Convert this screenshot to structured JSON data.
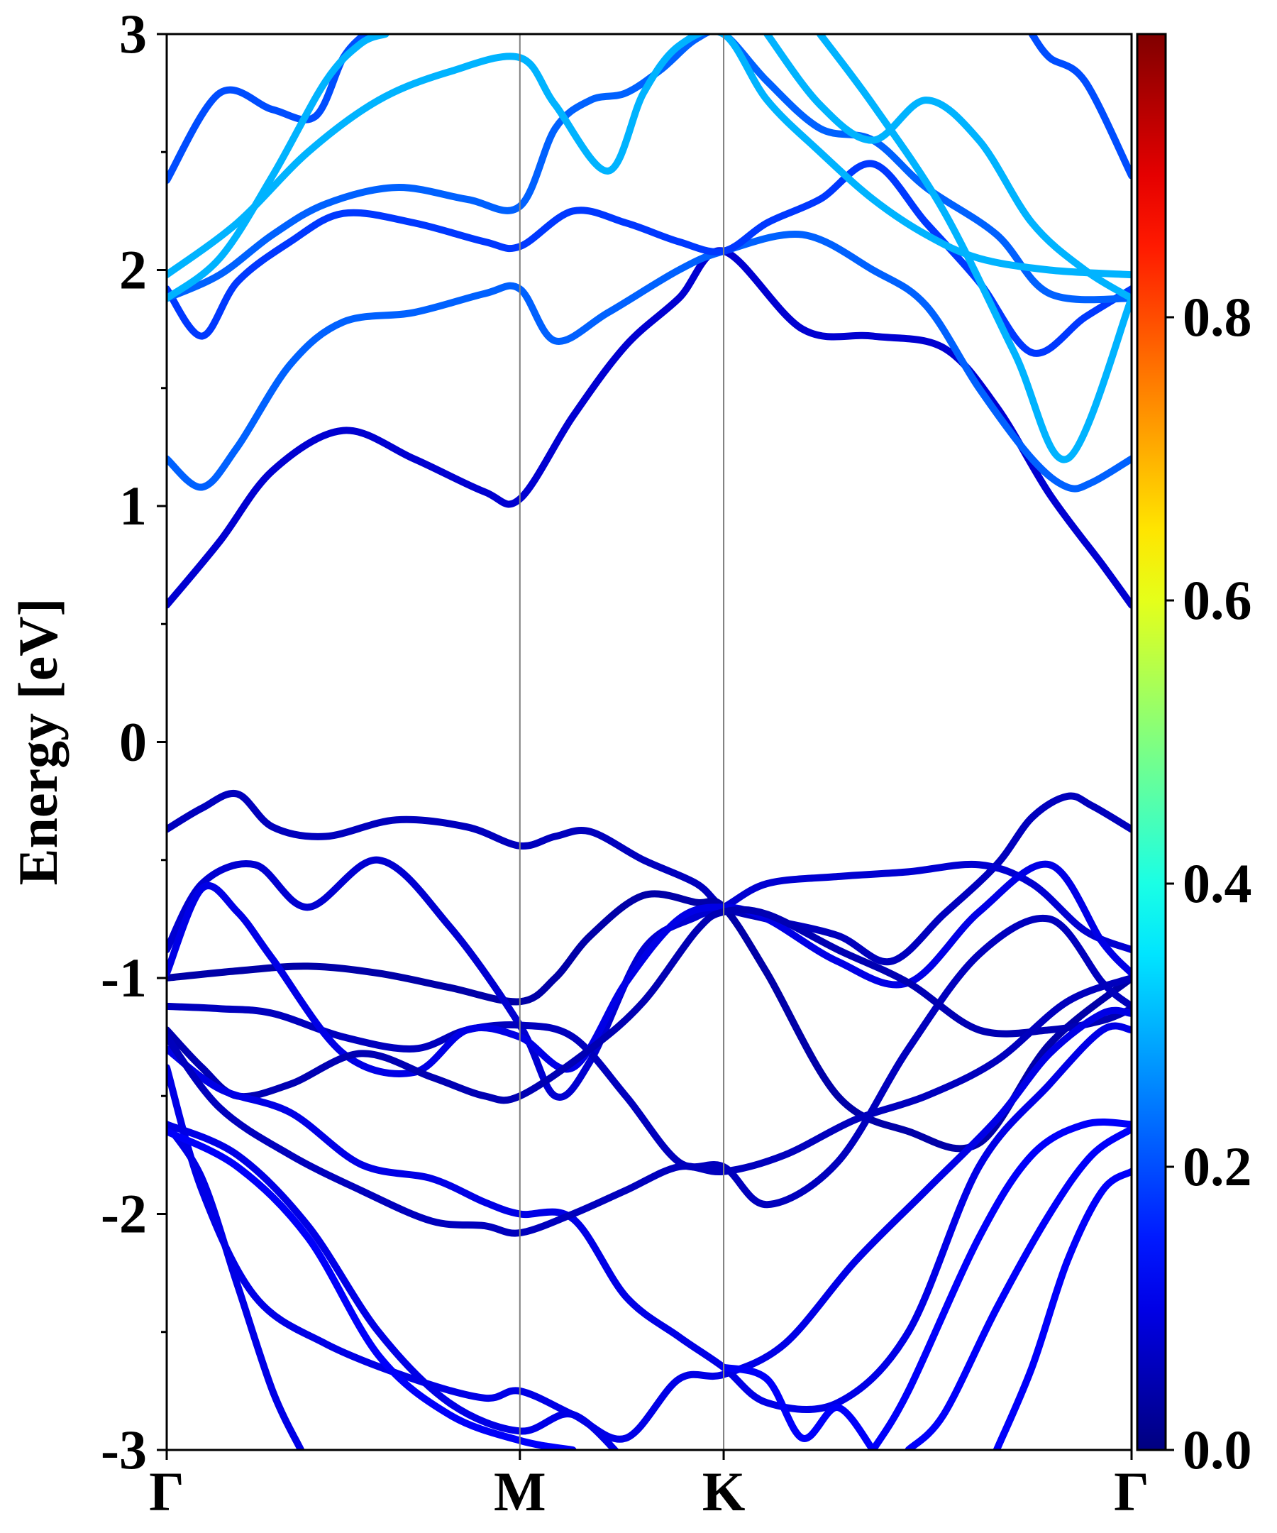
{
  "chart_data": {
    "type": "line",
    "title": "",
    "ylabel": "Energy [eV]",
    "xlabel": "",
    "ylim": [
      -3,
      3
    ],
    "y_ticks": [
      -3,
      -2,
      -1,
      0,
      1,
      2,
      3
    ],
    "y_tick_labels": [
      "-3",
      "-2",
      "-1",
      "0",
      "1",
      "2",
      "3"
    ],
    "k_path": [
      "Γ",
      "M",
      "K",
      "Γ"
    ],
    "k_positions": [
      0,
      1,
      1.577,
      2.732
    ],
    "grid": false,
    "colormap": "jet",
    "colorbar": {
      "range": [
        0,
        1
      ],
      "ticks": [
        0.0,
        0.2,
        0.4,
        0.6,
        0.8
      ],
      "tick_labels": [
        "0.0",
        "0.2",
        "0.4",
        "0.6",
        "0.8"
      ]
    },
    "series": [
      {
        "weight": 0.06,
        "x": [
          0,
          0.1,
          0.2,
          0.3,
          0.45,
          0.65,
          0.85,
          1.0,
          1.1,
          1.2,
          1.35,
          1.5,
          1.577,
          1.7,
          1.9,
          2.05,
          2.2,
          2.35,
          2.45,
          2.55,
          2.62,
          2.732
        ],
        "y": [
          -0.37,
          -0.28,
          -0.22,
          -0.36,
          -0.4,
          -0.33,
          -0.36,
          -0.44,
          -0.4,
          -0.38,
          -0.5,
          -0.6,
          -0.7,
          -0.75,
          -0.82,
          -0.93,
          -0.73,
          -0.52,
          -0.32,
          -0.23,
          -0.27,
          -0.37
        ]
      },
      {
        "weight": 0.04,
        "x": [
          0,
          0.2,
          0.4,
          0.6,
          0.8,
          1.0,
          1.1,
          1.2,
          1.35,
          1.5,
          1.577,
          1.7,
          1.9,
          2.1,
          2.3,
          2.5,
          2.732
        ],
        "y": [
          -1.0,
          -0.97,
          -0.95,
          -0.98,
          -1.04,
          -1.1,
          -1.0,
          -0.82,
          -0.65,
          -0.68,
          -0.7,
          -0.98,
          -1.5,
          -1.65,
          -1.7,
          -1.28,
          -1.0
        ]
      },
      {
        "weight": 0.08,
        "x": [
          0,
          0.1,
          0.25,
          0.4,
          0.6,
          0.8,
          1.0,
          1.1,
          1.2,
          1.35,
          1.5,
          1.577,
          1.7,
          1.9,
          2.1,
          2.3,
          2.45,
          2.6,
          2.732
        ],
        "y": [
          -0.88,
          -0.6,
          -0.52,
          -0.7,
          -0.5,
          -0.78,
          -1.2,
          -1.5,
          -1.35,
          -0.88,
          -0.74,
          -0.7,
          -0.6,
          -0.57,
          -0.55,
          -0.52,
          -0.6,
          -0.8,
          -0.88
        ]
      },
      {
        "weight": 0.06,
        "x": [
          0,
          0.15,
          0.3,
          0.5,
          0.7,
          0.85,
          1.0,
          1.15,
          1.3,
          1.45,
          1.577,
          1.7,
          1.9,
          2.1,
          2.3,
          2.5,
          2.65,
          2.732
        ],
        "y": [
          -1.12,
          -1.13,
          -1.15,
          -1.25,
          -1.3,
          -1.22,
          -1.2,
          -1.25,
          -1.5,
          -1.78,
          -1.8,
          -1.96,
          -1.78,
          -1.3,
          -0.9,
          -0.75,
          -1.02,
          -1.12
        ]
      },
      {
        "weight": 0.1,
        "x": [
          0,
          0.1,
          0.2,
          0.3,
          0.5,
          0.7,
          0.85,
          1.0,
          1.15,
          1.3,
          1.45,
          1.577,
          1.7,
          1.9,
          2.1,
          2.3,
          2.5,
          2.65,
          2.732
        ],
        "y": [
          -0.98,
          -0.62,
          -0.72,
          -0.92,
          -1.32,
          -1.4,
          -1.22,
          -1.25,
          -1.38,
          -1.02,
          -0.75,
          -0.7,
          -0.75,
          -0.93,
          -1.02,
          -0.72,
          -0.52,
          -0.85,
          -0.98
        ]
      },
      {
        "weight": 0.05,
        "x": [
          0,
          0.1,
          0.2,
          0.35,
          0.55,
          0.75,
          0.9,
          1.0,
          1.2,
          1.35,
          1.5,
          1.577,
          1.7,
          1.9,
          2.1,
          2.3,
          2.5,
          2.65,
          2.732
        ],
        "y": [
          -1.22,
          -1.38,
          -1.5,
          -1.45,
          -1.32,
          -1.42,
          -1.5,
          -1.5,
          -1.3,
          -1.1,
          -0.8,
          -0.72,
          -0.73,
          -0.88,
          -1.02,
          -1.22,
          -1.22,
          -1.18,
          -1.13
        ]
      },
      {
        "weight": 0.1,
        "x": [
          0,
          0.15,
          0.35,
          0.55,
          0.75,
          0.9,
          1.0,
          1.15,
          1.3,
          1.45,
          1.577,
          1.7,
          1.9,
          2.1,
          2.3,
          2.5,
          2.65,
          2.732
        ],
        "y": [
          -1.3,
          -1.47,
          -1.57,
          -1.79,
          -1.85,
          -1.95,
          -2.0,
          -2.02,
          -2.35,
          -2.52,
          -2.65,
          -2.8,
          -2.8,
          -2.5,
          -1.8,
          -1.45,
          -1.22,
          -1.22
        ]
      },
      {
        "weight": 0.06,
        "x": [
          0,
          0.15,
          0.35,
          0.55,
          0.75,
          0.9,
          1.0,
          1.15,
          1.3,
          1.45,
          1.577,
          1.75,
          1.95,
          2.15,
          2.35,
          2.55,
          2.732
        ],
        "y": [
          -1.25,
          -1.55,
          -1.75,
          -1.9,
          -2.03,
          -2.05,
          -2.08,
          -2.0,
          -1.9,
          -1.8,
          -1.82,
          -1.75,
          -1.6,
          -1.5,
          -1.35,
          -1.1,
          -1.0
        ]
      },
      {
        "weight": 0.1,
        "x": [
          0,
          0.1,
          0.25,
          0.45,
          0.7,
          0.9,
          1.0,
          1.15,
          1.3,
          1.45,
          1.577,
          1.75,
          1.95,
          2.15,
          2.35,
          2.5,
          2.65,
          2.732
        ],
        "y": [
          -1.38,
          -1.9,
          -2.35,
          -2.55,
          -2.7,
          -2.78,
          -2.75,
          -2.85,
          -2.95,
          -2.7,
          -2.68,
          -2.55,
          -2.2,
          -1.9,
          -1.6,
          -1.32,
          -1.15,
          -1.15
        ]
      },
      {
        "weight": 0.1,
        "x": [
          0,
          0.1,
          0.2,
          0.3,
          0.38
        ],
        "y": [
          -1.62,
          -1.85,
          -2.3,
          -2.75,
          -3.0
        ]
      },
      {
        "weight": 0.1,
        "x": [
          0,
          0.2,
          0.4,
          0.6,
          0.8,
          1.0,
          1.15,
          1.3
        ],
        "y": [
          -1.62,
          -1.75,
          -2.05,
          -2.5,
          -2.8,
          -2.92,
          -2.85,
          -3.05
        ]
      },
      {
        "weight": 0.12,
        "x": [
          0,
          0.2,
          0.4,
          0.6,
          0.8,
          1.0,
          1.15
        ],
        "y": [
          -1.65,
          -1.8,
          -2.1,
          -2.6,
          -2.85,
          -2.96,
          -3.0
        ]
      },
      {
        "weight": 0.12,
        "x": [
          2.732,
          2.6,
          2.45,
          2.3,
          2.1,
          2.0
        ],
        "y": [
          -1.62,
          -1.62,
          -1.75,
          -2.1,
          -2.75,
          -3.0
        ]
      },
      {
        "weight": 0.12,
        "x": [
          2.732,
          2.62,
          2.5,
          2.35,
          2.2,
          2.1
        ],
        "y": [
          -1.64,
          -1.75,
          -2.0,
          -2.4,
          -2.85,
          -3.0
        ]
      },
      {
        "weight": 0.12,
        "x": [
          2.732,
          2.65,
          2.55,
          2.45,
          2.35
        ],
        "y": [
          -1.82,
          -1.9,
          -2.2,
          -2.65,
          -3.0
        ]
      },
      {
        "weight": 0.12,
        "x": [
          1.577,
          1.7,
          1.8,
          1.9,
          2.0
        ],
        "y": [
          -2.65,
          -2.7,
          -2.95,
          -2.82,
          -3.0
        ]
      },
      {
        "weight": 0.08,
        "x": [
          0,
          0.15,
          0.3,
          0.5,
          0.7,
          0.9,
          1.0,
          1.15,
          1.3,
          1.45,
          1.577,
          1.8,
          2.0,
          2.2,
          2.35,
          2.5,
          2.65,
          2.732
        ],
        "y": [
          0.58,
          0.85,
          1.15,
          1.32,
          1.2,
          1.06,
          1.03,
          1.38,
          1.68,
          1.88,
          2.08,
          1.75,
          1.72,
          1.67,
          1.42,
          1.05,
          0.75,
          0.58
        ]
      },
      {
        "weight": 0.22,
        "x": [
          0,
          0.1,
          0.2,
          0.35,
          0.5,
          0.7,
          0.9,
          1.0,
          1.1,
          1.25,
          1.45,
          1.577,
          1.8,
          2.0,
          2.15,
          2.3,
          2.45,
          2.55,
          2.62,
          2.732
        ],
        "y": [
          1.2,
          1.08,
          1.25,
          1.6,
          1.78,
          1.82,
          1.9,
          1.92,
          1.7,
          1.82,
          2.0,
          2.08,
          2.15,
          2.0,
          1.85,
          1.5,
          1.2,
          1.08,
          1.1,
          1.2
        ]
      },
      {
        "weight": 0.18,
        "x": [
          0,
          0.1,
          0.2,
          0.35,
          0.5,
          0.7,
          0.9,
          1.0,
          1.15,
          1.3,
          1.45,
          1.577,
          1.7,
          1.85,
          2.0,
          2.15,
          2.3,
          2.45,
          2.6,
          2.732
        ],
        "y": [
          1.92,
          1.72,
          1.95,
          2.12,
          2.24,
          2.2,
          2.12,
          2.1,
          2.25,
          2.2,
          2.12,
          2.08,
          2.2,
          2.3,
          2.45,
          2.2,
          1.95,
          1.65,
          1.8,
          1.92
        ]
      },
      {
        "weight": 0.22,
        "x": [
          0,
          0.15,
          0.3,
          0.45,
          0.65,
          0.85,
          1.0,
          1.1,
          1.2,
          1.3,
          1.4,
          1.5,
          1.577,
          1.7,
          1.85,
          2.0,
          2.15,
          2.35,
          2.5,
          2.732
        ],
        "y": [
          1.88,
          1.98,
          2.15,
          2.28,
          2.35,
          2.3,
          2.27,
          2.6,
          2.72,
          2.75,
          2.85,
          2.98,
          3.0,
          2.8,
          2.6,
          2.55,
          2.35,
          2.15,
          1.9,
          1.88
        ]
      },
      {
        "weight": 0.2,
        "x": [
          0,
          0.15,
          0.3,
          0.42,
          0.5,
          0.56
        ],
        "y": [
          2.38,
          2.75,
          2.68,
          2.65,
          2.9,
          3.0
        ]
      },
      {
        "weight": 0.3,
        "x": [
          0,
          0.2,
          0.4,
          0.6,
          0.8,
          1.0,
          1.1,
          1.25,
          1.35,
          1.45,
          1.577,
          1.7,
          1.85,
          2.0,
          2.15,
          2.3,
          2.5,
          2.732
        ],
        "y": [
          1.98,
          2.2,
          2.5,
          2.72,
          2.84,
          2.9,
          2.7,
          2.42,
          2.75,
          2.95,
          3.0,
          2.72,
          2.5,
          2.3,
          2.15,
          2.05,
          2.0,
          1.98
        ]
      },
      {
        "weight": 0.3,
        "x": [
          0,
          0.15,
          0.3,
          0.45,
          0.55,
          0.62
        ],
        "y": [
          1.88,
          2.05,
          2.4,
          2.8,
          2.96,
          3.0
        ]
      },
      {
        "weight": 0.3,
        "x": [
          2.732,
          2.6,
          2.45,
          2.3,
          2.15,
          2.0,
          1.85,
          1.7
        ],
        "y": [
          1.88,
          2.0,
          2.2,
          2.55,
          2.72,
          2.55,
          2.7,
          3.0
        ]
      },
      {
        "weight": 0.3,
        "x": [
          2.732,
          2.55,
          2.4,
          2.2,
          2.0,
          1.85
        ],
        "y": [
          1.88,
          1.2,
          1.65,
          2.25,
          2.7,
          3.0
        ]
      },
      {
        "weight": 0.2,
        "x": [
          2.732,
          2.6,
          2.5,
          2.45
        ],
        "y": [
          2.4,
          2.8,
          2.9,
          3.0
        ]
      }
    ]
  }
}
